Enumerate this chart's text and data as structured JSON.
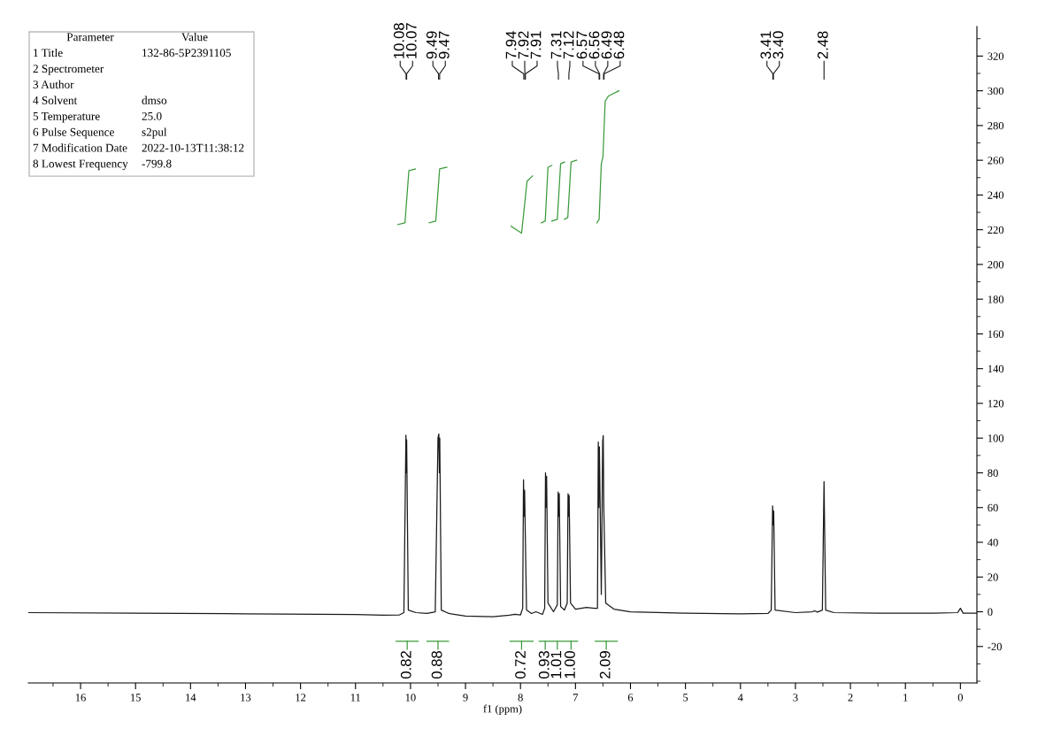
{
  "chart_data": {
    "type": "line",
    "xlabel": "f1 (ppm)",
    "xlim": [
      16.95,
      -0.3
    ],
    "ylim": [
      -41,
      337
    ],
    "xticks": [
      16,
      15,
      14,
      13,
      12,
      11,
      10,
      9,
      8,
      7,
      6,
      5,
      4,
      3,
      2,
      1,
      0
    ],
    "yticks": [
      -20,
      0,
      20,
      40,
      60,
      80,
      100,
      120,
      140,
      160,
      180,
      200,
      220,
      240,
      260,
      280,
      300,
      320
    ],
    "grid": false,
    "legend": false,
    "series": [
      {
        "color": "#1a1a1a",
        "x": [
          16.95,
          15,
          13,
          11,
          10.5,
          10.2,
          10.12,
          10.083,
          10.077,
          10.07,
          10.04,
          9.9,
          9.7,
          9.55,
          9.5,
          9.485,
          9.475,
          9.468,
          9.44,
          9.3,
          9.0,
          8.5,
          8.2,
          8.1,
          8.0,
          7.96,
          7.945,
          7.935,
          7.925,
          7.91,
          7.89,
          7.8,
          7.72,
          7.6,
          7.56,
          7.545,
          7.535,
          7.525,
          7.5,
          7.4,
          7.33,
          7.315,
          7.305,
          7.295,
          7.27,
          7.2,
          7.15,
          7.135,
          7.125,
          7.115,
          7.09,
          7.0,
          6.8,
          6.65,
          6.6,
          6.585,
          6.575,
          6.565,
          6.53,
          6.505,
          6.495,
          6.485,
          6.45,
          6.3,
          6.0,
          5.0,
          4.0,
          3.5,
          3.44,
          3.415,
          3.405,
          3.395,
          3.37,
          3.0,
          2.7,
          2.65,
          2.6,
          2.51,
          2.48,
          2.45,
          2.3,
          1.5,
          0.5,
          0.05,
          0.0,
          -0.05,
          -0.3
        ],
        "values": [
          -0.5,
          -0.8,
          -1.2,
          -1.6,
          -2.0,
          -1.8,
          -0.5,
          101.7,
          80,
          99,
          1,
          -0.5,
          -1,
          0,
          100,
          102.4,
          80,
          100,
          1,
          -1,
          -2.5,
          -2.8,
          -2,
          -1.5,
          -1.8,
          2,
          76,
          55,
          70,
          40,
          1,
          -1,
          0,
          -1.5,
          2,
          80,
          60,
          78,
          5,
          0,
          4,
          69,
          55,
          68,
          3,
          1,
          5,
          68,
          55,
          67,
          5,
          1.5,
          2.5,
          2,
          2,
          97.7,
          60,
          95,
          10,
          98,
          101.4,
          60,
          5,
          1.5,
          0,
          -0.8,
          -1.2,
          -1,
          1,
          61,
          50,
          58,
          1,
          -0.5,
          0,
          0.5,
          -0.2,
          1,
          75,
          1,
          -0.5,
          -0.8,
          -0.8,
          -0.5,
          2,
          -0.8,
          -0.8
        ]
      },
      {
        "color": "#3c9b3c",
        "x": [
          10.23,
          10.1,
          10.03,
          9.91
        ],
        "values": [
          223,
          224,
          254,
          255
        ]
      },
      {
        "color": "#3c9b3c",
        "x": [
          9.66,
          9.54,
          9.47,
          9.34
        ],
        "values": [
          224,
          225,
          255,
          256
        ]
      },
      {
        "color": "#3c9b3c",
        "x": [
          8.17,
          7.98,
          7.88,
          7.78
        ],
        "values": [
          222,
          218,
          248,
          251
        ]
      },
      {
        "color": "#3c9b3c",
        "x": [
          7.62,
          7.55,
          7.5,
          7.43
        ],
        "values": [
          224,
          225,
          256,
          257
        ]
      },
      {
        "color": "#3c9b3c",
        "x": [
          7.43,
          7.33,
          7.27,
          7.2
        ],
        "values": [
          225,
          226,
          258,
          259
        ]
      },
      {
        "color": "#3c9b3c",
        "x": [
          7.2,
          7.14,
          7.08,
          6.98
        ],
        "values": [
          226,
          227,
          259,
          260
        ]
      },
      {
        "color": "#3c9b3c",
        "x": [
          6.61,
          6.57,
          6.53,
          6.5,
          6.46,
          6.4,
          6.21
        ],
        "values": [
          224,
          226,
          258,
          262,
          294,
          297,
          300
        ]
      },
      {
        "color": "#3c9b3c",
        "x": [
          10.26,
          9.86,
          9.78,
          9.7,
          9.31,
          8.75,
          8.19,
          7.77,
          7.7,
          7.66,
          7.45,
          7.21,
          6.96,
          6.8,
          6.64,
          6.24
        ],
        "values": [
          -17,
          -17,
          null,
          -17,
          -17,
          null,
          -17,
          -17,
          null,
          -17,
          -17,
          -17,
          -17,
          null,
          -17,
          -17
        ]
      }
    ],
    "annotations": [
      "Parameter\tValue",
      "1 Title\t132-86-5P2391105",
      "2 Spectrometer",
      "3 Author",
      "4 Solvent\tdmso",
      "5 Temperature\t25.0",
      "6 Pulse Sequence\ts2pul",
      "7 Modification Date\t2022-10-13T11:38:12",
      "8 Lowest Frequency\t-799.8",
      {
        "text": "10.08",
        "x": 10.08
      },
      {
        "text": "10.07",
        "x": 10.07
      },
      {
        "text": "9.49",
        "x": 9.49
      },
      {
        "text": "9.47",
        "x": 9.47
      },
      {
        "text": "7.94",
        "x": 7.94
      },
      {
        "text": "7.92",
        "x": 7.92
      },
      {
        "text": "7.91",
        "x": 7.91
      },
      {
        "text": "7.31",
        "x": 7.31
      },
      {
        "text": "7.12",
        "x": 7.12
      },
      {
        "text": "6.57",
        "x": 6.57
      },
      {
        "text": "6.56",
        "x": 6.56
      },
      {
        "text": "6.49",
        "x": 6.49
      },
      {
        "text": "6.48",
        "x": 6.48
      },
      {
        "text": "3.41",
        "x": 3.41
      },
      {
        "text": "3.40",
        "x": 3.4
      },
      {
        "text": "2.48",
        "x": 2.48
      },
      {
        "text": "0.82",
        "x": 10.06,
        "y": -17
      },
      {
        "text": "0.88",
        "x": 9.5,
        "y": -17
      },
      {
        "text": "0.72",
        "x": 7.98,
        "y": -17
      },
      {
        "text": "0.93",
        "x": 7.55,
        "y": -17
      },
      {
        "text": "1.01",
        "x": 7.33,
        "y": -17
      },
      {
        "text": "1.00",
        "x": 7.08,
        "y": -17
      },
      {
        "text": "2.09",
        "x": 6.44,
        "y": -17
      }
    ]
  }
}
